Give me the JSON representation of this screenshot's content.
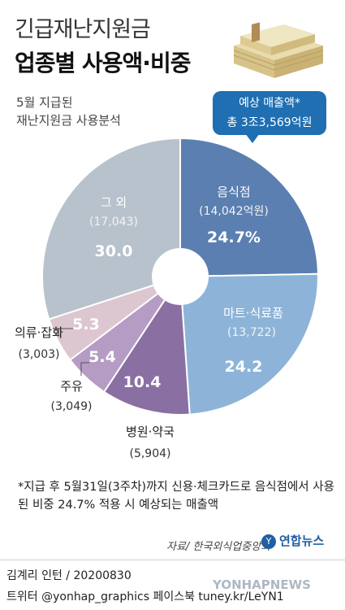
{
  "header": {
    "title_line1": "긴급재난지원금",
    "title_line2": "업종별 사용액·비중",
    "subtitle_line1": "5월 지급된",
    "subtitle_line2": "재난지원금 사용분석"
  },
  "callout": {
    "line1": "예상 매출액*",
    "line2": "총 3조3,569억원"
  },
  "chart_data": {
    "type": "pie",
    "style": "donut",
    "slices": [
      {
        "name": "음식점",
        "amount": "(14,042억원)",
        "value": 24.7,
        "value_label": "24.7%",
        "color": "#5a7fb0",
        "label_color": "#ffffff"
      },
      {
        "name": "마트·식료품",
        "amount": "(13,722)",
        "value": 24.2,
        "value_label": "24.2",
        "color": "#8db4d8",
        "label_color": "#ffffff"
      },
      {
        "name": "병원·약국",
        "amount": "(5,904)",
        "value": 10.4,
        "value_label": "10.4",
        "color": "#8a6fa3",
        "label_color": "#222222"
      },
      {
        "name": "주유",
        "amount": "(3,049)",
        "value": 5.4,
        "value_label": "5.4",
        "color": "#b59cc4",
        "label_color": "#222222"
      },
      {
        "name": "의류·잡화",
        "amount": "(3,003)",
        "value": 5.3,
        "value_label": "5.3",
        "color": "#dcc6cf",
        "label_color": "#222222"
      },
      {
        "name": "그 외",
        "amount": "(17,043)",
        "value": 30.0,
        "value_label": "30.0",
        "color": "#b8c2cc",
        "label_color": "#ffffff"
      }
    ]
  },
  "footnote": "*지급 후 5월31일(3주차)까지 신용·체크카드로 음식점에서 사용된 비중 24.7% 적용 시 예상되는 매출액",
  "source": "자료/ 한국외식업중앙회",
  "logo": "연합뉴스",
  "logo_mark": "Y",
  "credit": "김계리 인턴 / 20200830",
  "social": "트위터 @yonhap_graphics  페이스북 tuney.kr/LeYN1",
  "watermark": "YONHAPNEWS"
}
